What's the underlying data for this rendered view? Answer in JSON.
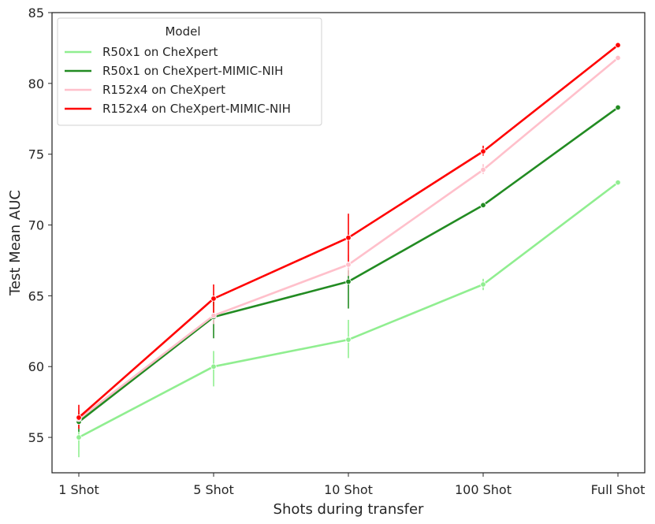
{
  "chart_data": {
    "type": "line",
    "title": "",
    "xlabel": "Shots during transfer",
    "ylabel": "Test Mean AUC",
    "categories": [
      "1 Shot",
      "5 Shot",
      "10 Shot",
      "100 Shot",
      "Full Shot"
    ],
    "ylim": [
      52.5,
      85
    ],
    "yticks": [
      55,
      60,
      65,
      70,
      75,
      80,
      85
    ],
    "grid": false,
    "legend": {
      "title": "Model",
      "placement": "top-left"
    },
    "series": [
      {
        "name": "R50x1 on CheXpert",
        "color": "#90ee90",
        "values": [
          55.0,
          60.0,
          61.9,
          65.8,
          73.0
        ],
        "ci": [
          [
            53.6,
            56.1
          ],
          [
            58.6,
            61.1
          ],
          [
            60.6,
            63.3
          ],
          [
            65.4,
            66.2
          ],
          [
            72.9,
            73.1
          ]
        ]
      },
      {
        "name": "R50x1 on CheXpert-MIMIC-NIH",
        "color": "#228b22",
        "values": [
          56.1,
          63.5,
          66.0,
          71.4,
          78.3
        ],
        "ci": [
          [
            55.4,
            56.9
          ],
          [
            62.0,
            64.7
          ],
          [
            64.1,
            66.8
          ],
          [
            71.2,
            71.6
          ],
          [
            78.2,
            78.4
          ]
        ]
      },
      {
        "name": "R152x4 on CheXpert",
        "color": "#ffc0cb",
        "values": [
          56.3,
          63.6,
          67.2,
          73.9,
          81.8
        ],
        "ci": [
          [
            55.6,
            57.0
          ],
          [
            63.0,
            64.3
          ],
          [
            66.4,
            67.9
          ],
          [
            73.6,
            74.3
          ],
          [
            81.7,
            81.9
          ]
        ]
      },
      {
        "name": "R152x4 on CheXpert-MIMIC-NIH",
        "color": "#ff0000",
        "values": [
          56.4,
          64.8,
          69.1,
          75.2,
          82.7
        ],
        "ci": [
          [
            55.6,
            57.3
          ],
          [
            63.8,
            65.8
          ],
          [
            67.4,
            70.8
          ],
          [
            74.9,
            75.6
          ],
          [
            82.6,
            82.8
          ]
        ]
      }
    ]
  }
}
